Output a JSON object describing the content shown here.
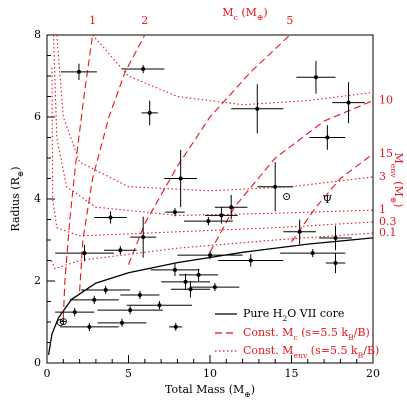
{
  "chart_data": {
    "type": "scatter",
    "x_label": [
      "Total Mass (M",
      "⊕",
      ")"
    ],
    "y_label": [
      "Radius (R",
      "⊕",
      ")"
    ],
    "x2_label": [
      "M",
      "c",
      " (M",
      "⊕",
      ")"
    ],
    "y2_label": [
      "M",
      "env",
      " (M",
      "⊕",
      ")"
    ],
    "xlim": [
      0,
      20
    ],
    "ylim": [
      0,
      8
    ],
    "xticks": [
      0,
      5,
      10,
      15,
      20
    ],
    "yticks": [
      0,
      2,
      4,
      6,
      8
    ],
    "points": {
      "color": "#000000",
      "x": [
        1.96,
        5.9,
        6.3,
        12.9,
        16.5,
        18.5,
        17.2,
        8.2,
        14.0,
        11.3,
        3.9,
        5.9,
        7.85,
        9.9,
        10.7,
        15.5,
        17.7,
        2.3,
        4.5,
        10.0,
        12.5,
        16.3,
        17.7,
        7.85,
        8.5,
        5.7,
        6.9,
        5.1,
        2.9,
        1.7,
        4.6,
        2.6,
        7.9,
        8.8,
        9.3,
        3.6,
        10.3
      ],
      "y": [
        7.1,
        7.17,
        6.1,
        6.2,
        6.97,
        6.35,
        5.5,
        4.5,
        4.3,
        3.8,
        3.55,
        3.07,
        3.68,
        3.46,
        3.6,
        3.2,
        3.05,
        2.68,
        2.75,
        2.63,
        2.5,
        2.68,
        2.44,
        2.27,
        1.98,
        1.66,
        1.41,
        1.29,
        1.54,
        1.24,
        0.98,
        0.88,
        0.88,
        1.8,
        2.15,
        1.78,
        1.85
      ],
      "xerr": [
        1.1,
        1.3,
        0.5,
        1.6,
        1.2,
        1.0,
        1.1,
        1.0,
        1.1,
        1.0,
        1.0,
        0.8,
        0.6,
        1.5,
        1.0,
        1.0,
        1.0,
        1.8,
        1.0,
        2.0,
        2.0,
        2.0,
        0.6,
        1.5,
        1.5,
        1.2,
        2.0,
        2.0,
        1.5,
        1.2,
        1.5,
        1.8,
        0.4,
        1.2,
        1.2,
        1.5,
        1.5
      ],
      "yerr": [
        0.2,
        0.1,
        0.3,
        0.6,
        0.4,
        0.5,
        0.3,
        0.7,
        0.6,
        0.3,
        0.15,
        0.5,
        0.1,
        0.1,
        0.2,
        0.3,
        0.3,
        0.2,
        0.1,
        0.1,
        0.15,
        0.1,
        0.25,
        0.15,
        0.2,
        0.1,
        0.1,
        0.1,
        0.1,
        0.1,
        0.1,
        0.1,
        0.1,
        0.2,
        0.15,
        0.1,
        0.1
      ]
    },
    "solar_system": [
      {
        "label": "⊕",
        "x": 1.0,
        "y": 1.0
      },
      {
        "label": "⊙",
        "x": 0.82,
        "y": 0.98
      },
      {
        "label": "⊙",
        "x": 14.7,
        "y": 4.05
      },
      {
        "label": "Ψ",
        "x": 17.2,
        "y": 3.98
      }
    ],
    "core_curve": {
      "name": [
        "Pure H",
        "2",
        "O VII core"
      ],
      "color": "#000000",
      "x": [
        0.1,
        0.3,
        0.7,
        1.5,
        3,
        5,
        8,
        12,
        16,
        20
      ],
      "y": [
        0.2,
        0.7,
        1.1,
        1.55,
        1.95,
        2.2,
        2.45,
        2.7,
        2.9,
        3.05
      ]
    },
    "mc_curves": {
      "name": [
        "Const. M",
        "c",
        " (s=5.5 k",
        "B",
        "/B)"
      ],
      "color": "#e8141c",
      "dash": "dashed",
      "curves": [
        {
          "label": "1",
          "x": [
            1,
            1.1,
            1.4,
            1.8,
            2.3,
            2.8
          ],
          "y": [
            1.1,
            2,
            3.5,
            5,
            6.6,
            8
          ]
        },
        {
          "label": "2",
          "x": [
            2,
            2.2,
            2.8,
            3.8,
            4.8,
            6
          ],
          "y": [
            1.75,
            3,
            4.5,
            6,
            7.1,
            8
          ]
        },
        {
          "label": "5",
          "x": [
            5,
            6,
            8,
            10,
            12.5,
            14.9
          ],
          "y": [
            2.4,
            3.4,
            4.8,
            6,
            7.1,
            8
          ]
        },
        {
          "label": "10",
          "x": [
            10,
            11.5,
            14,
            17,
            20
          ],
          "y": [
            2.7,
            3.8,
            5,
            5.9,
            6.4
          ]
        },
        {
          "label": "15",
          "x": [
            15,
            16.5,
            18,
            20
          ],
          "y": [
            2.95,
            3.8,
            4.5,
            5.1
          ]
        }
      ]
    },
    "menv_curves": {
      "name": [
        "Const. M",
        "env",
        " (s=5.5 k",
        "B",
        "/B)"
      ],
      "color": "#e8141c",
      "dash": "dotted",
      "curves": [
        {
          "x": [
            2.8,
            5,
            8,
            12,
            16,
            20
          ],
          "y": [
            8,
            7,
            6.5,
            6.3,
            6.4,
            6.6
          ]
        },
        {
          "label": "3",
          "x": [
            0.6,
            1,
            2,
            5,
            10,
            15,
            20
          ],
          "y": [
            8,
            6,
            4.9,
            4.3,
            4.2,
            4.3,
            4.54
          ]
        },
        {
          "label": "1",
          "x": [
            0.4,
            0.6,
            1.2,
            3,
            8,
            14,
            20
          ],
          "y": [
            8,
            5.5,
            4.3,
            3.8,
            3.6,
            3.65,
            3.73
          ]
        },
        {
          "label": "0.3",
          "x": [
            0.3,
            0.35,
            0.6,
            2,
            8,
            14,
            20
          ],
          "y": [
            7.2,
            4,
            3.3,
            3.1,
            3.2,
            3.3,
            3.44
          ]
        },
        {
          "label": "0.1",
          "x": [
            0.25,
            0.5,
            2,
            8,
            14,
            20
          ],
          "y": [
            2.5,
            2.3,
            2.5,
            2.8,
            3,
            3.17
          ]
        }
      ]
    }
  }
}
